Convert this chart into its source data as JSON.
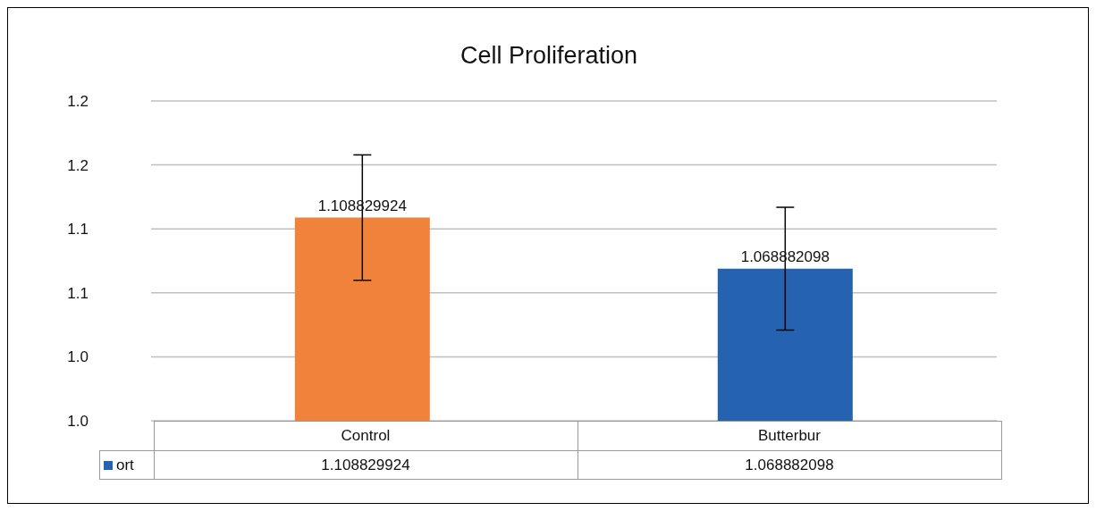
{
  "chart_data": {
    "type": "bar",
    "title": "Cell Proliferation",
    "categories": [
      "Control",
      "Butterbur"
    ],
    "series": [
      {
        "name": "ort",
        "color": "#2563b0",
        "colors": [
          "#f0823c",
          "#2563b0"
        ],
        "values": [
          1.108829924,
          1.068882098
        ],
        "errors": [
          0.049,
          0.048
        ],
        "value_labels": [
          "1.108829924",
          "1.068882098"
        ]
      }
    ],
    "ylim": [
      0.95,
      1.2
    ],
    "yticks": [
      {
        "value": 0.95,
        "label": "1.0"
      },
      {
        "value": 1.0,
        "label": "1.0"
      },
      {
        "value": 1.05,
        "label": "1.1"
      },
      {
        "value": 1.1,
        "label": "1.1"
      },
      {
        "value": 1.15,
        "label": "1.2"
      },
      {
        "value": 1.2,
        "label": "1.2"
      }
    ],
    "grid": "y",
    "data_labels": true,
    "annotations": [
      "1.108829924",
      "1.068882098"
    ]
  }
}
